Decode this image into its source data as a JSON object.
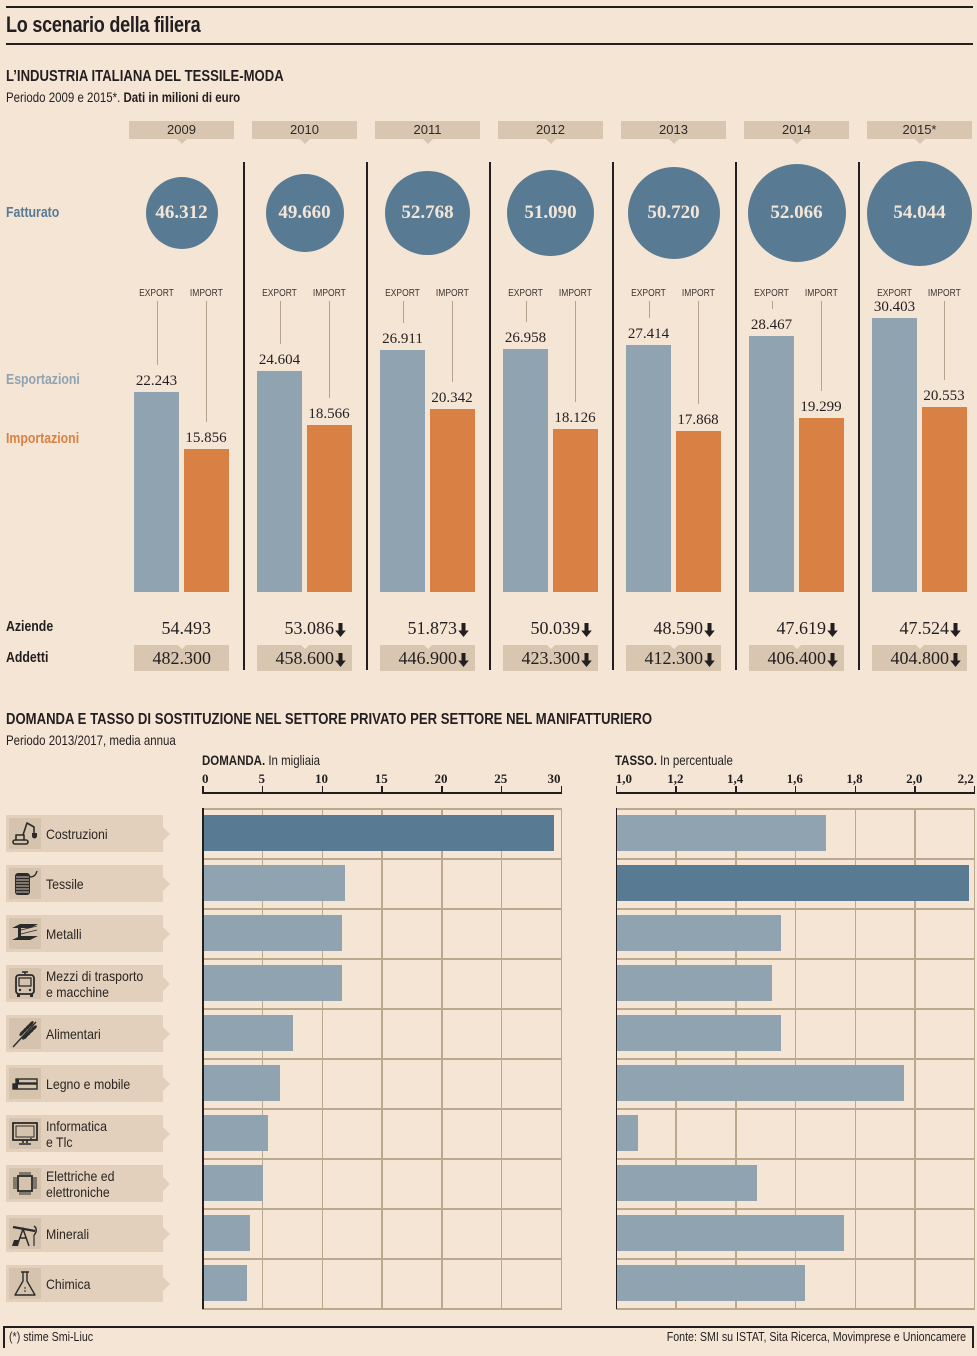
{
  "header": {
    "title": "Lo scenario della filiera"
  },
  "section1": {
    "title": "L’INDUSTRIA ITALIANA DEL TESSILE-MODA",
    "subtitle_regular": "Periodo 2009 e 2015*. ",
    "subtitle_bold": "Dati in milioni di euro",
    "row_labels": {
      "fatturato": "Fatturato",
      "esportazioni": "Esportazioni",
      "importazioni": "Importazioni",
      "aziende": "Aziende",
      "addetti": "Addetti"
    },
    "bar_labels": {
      "export": "EXPORT",
      "import": "IMPORT"
    },
    "trend_icon": "down-arrow-icon"
  },
  "section2": {
    "title": "DOMANDA E TASSO DI SOSTITUZIONE NEL SETTORE PRIVATO PER SETTORE NEL MANIFATTURIERO",
    "subtitle": "Periodo 2013/2017, media annua",
    "domanda_heading": {
      "bold": "DOMANDA.",
      "regular": " In migliaia"
    },
    "tasso_heading": {
      "bold": "TASSO.",
      "regular": " In percentuale"
    },
    "sectors": [
      {
        "label_lines": [
          "Costruzioni"
        ],
        "icon": "excavator-icon"
      },
      {
        "label_lines": [
          "Tessile"
        ],
        "icon": "thread-spool-icon"
      },
      {
        "label_lines": [
          "Metalli"
        ],
        "icon": "steel-beam-icon"
      },
      {
        "label_lines": [
          "Mezzi di trasporto",
          "e macchine"
        ],
        "icon": "bus-icon"
      },
      {
        "label_lines": [
          "Alimentari"
        ],
        "icon": "wheat-icon"
      },
      {
        "label_lines": [
          "Legno e mobile"
        ],
        "icon": "wood-planks-icon"
      },
      {
        "label_lines": [
          "Informatica",
          "e Tlc"
        ],
        "icon": "computer-monitor-icon"
      },
      {
        "label_lines": [
          "Elettriche ed",
          "elettroniche"
        ],
        "icon": "microchip-icon"
      },
      {
        "label_lines": [
          "Minerali"
        ],
        "icon": "oil-pump-icon"
      },
      {
        "label_lines": [
          "Chimica"
        ],
        "icon": "flask-icon"
      }
    ]
  },
  "colors": {
    "background": "#f5e5d5",
    "fatturato": "#587a93",
    "export": "#8fa3b1",
    "import": "#d98044",
    "highlight_bar": "#587a93",
    "regular_bar": "#8fa3b1",
    "tab": "#d9c6b1"
  },
  "footer": {
    "note": "(*) stime Smi-Liuc",
    "source": "Fonte: SMI su ISTAT, Sita Ricerca, Movimprese e Unioncamere"
  },
  "chart_data": [
    {
      "type": "bar",
      "title": "L’INDUSTRIA ITALIANA DEL TESSILE-MODA",
      "subtitle": "Periodo 2009 e 2015*. Dati in milioni di euro",
      "categories": [
        "2009",
        "2010",
        "2011",
        "2012",
        "2013",
        "2014",
        "2015*"
      ],
      "series": [
        {
          "key": "fatturato",
          "name": "Fatturato",
          "mark": "circle",
          "values": [
            46312,
            49660,
            52768,
            51090,
            50720,
            52066,
            54044
          ]
        },
        {
          "key": "export",
          "name": "Esportazioni",
          "mark": "bar",
          "values": [
            22243,
            24604,
            26911,
            26958,
            27414,
            28467,
            30403
          ]
        },
        {
          "key": "import",
          "name": "Importazioni",
          "mark": "bar",
          "values": [
            15856,
            18566,
            20342,
            18126,
            17868,
            19299,
            20553
          ]
        },
        {
          "key": "aziende",
          "name": "Aziende",
          "mark": "text",
          "values": [
            54493,
            53086,
            51873,
            50039,
            48590,
            47619,
            47524
          ],
          "trend": [
            null,
            "down",
            "down",
            "down",
            "down",
            "down",
            "down"
          ]
        },
        {
          "key": "addetti",
          "name": "Addetti",
          "mark": "text",
          "values": [
            482300,
            458600,
            446900,
            423300,
            412300,
            406400,
            404800
          ],
          "trend": [
            null,
            "down",
            "down",
            "down",
            "down",
            "down",
            "down"
          ]
        }
      ],
      "xlabel": "",
      "ylabel": "milioni di euro"
    },
    {
      "type": "bar",
      "orientation": "horizontal",
      "title": "DOMANDA",
      "subtitle": "In migliaia",
      "categories": [
        "Costruzioni",
        "Tessile",
        "Metalli",
        "Mezzi di trasporto e macchine",
        "Alimentari",
        "Legno e mobile",
        "Informatica e Tlc",
        "Elettriche ed elettroniche",
        "Minerali",
        "Chimica"
      ],
      "values": [
        29.3,
        11.8,
        11.6,
        11.6,
        7.5,
        6.4,
        5.4,
        5.0,
        3.9,
        3.6
      ],
      "xlim": [
        0,
        30
      ],
      "ticks": [
        0,
        5,
        10,
        15,
        20,
        25,
        30
      ],
      "tick_labels": [
        "0",
        "5",
        "10",
        "15",
        "20",
        "25",
        "30"
      ],
      "highlight": "Costruzioni",
      "grid": true
    },
    {
      "type": "bar",
      "orientation": "horizontal",
      "title": "TASSO",
      "subtitle": "In percentuale",
      "categories": [
        "Costruzioni",
        "Tessile",
        "Metalli",
        "Mezzi di trasporto e macchine",
        "Alimentari",
        "Legno e mobile",
        "Informatica e Tlc",
        "Elettriche ed elettroniche",
        "Minerali",
        "Chimica"
      ],
      "values": [
        1.7,
        2.18,
        1.55,
        1.52,
        1.55,
        1.96,
        1.07,
        1.47,
        1.76,
        1.63
      ],
      "xlim": [
        1.0,
        2.2
      ],
      "ticks": [
        1.0,
        1.2,
        1.4,
        1.6,
        1.8,
        2.0,
        2.2
      ],
      "tick_labels": [
        "1,0",
        "1,2",
        "1,4",
        "1,6",
        "1,8",
        "2,0",
        "2,2"
      ],
      "highlight": "Tessile",
      "grid": true
    }
  ]
}
